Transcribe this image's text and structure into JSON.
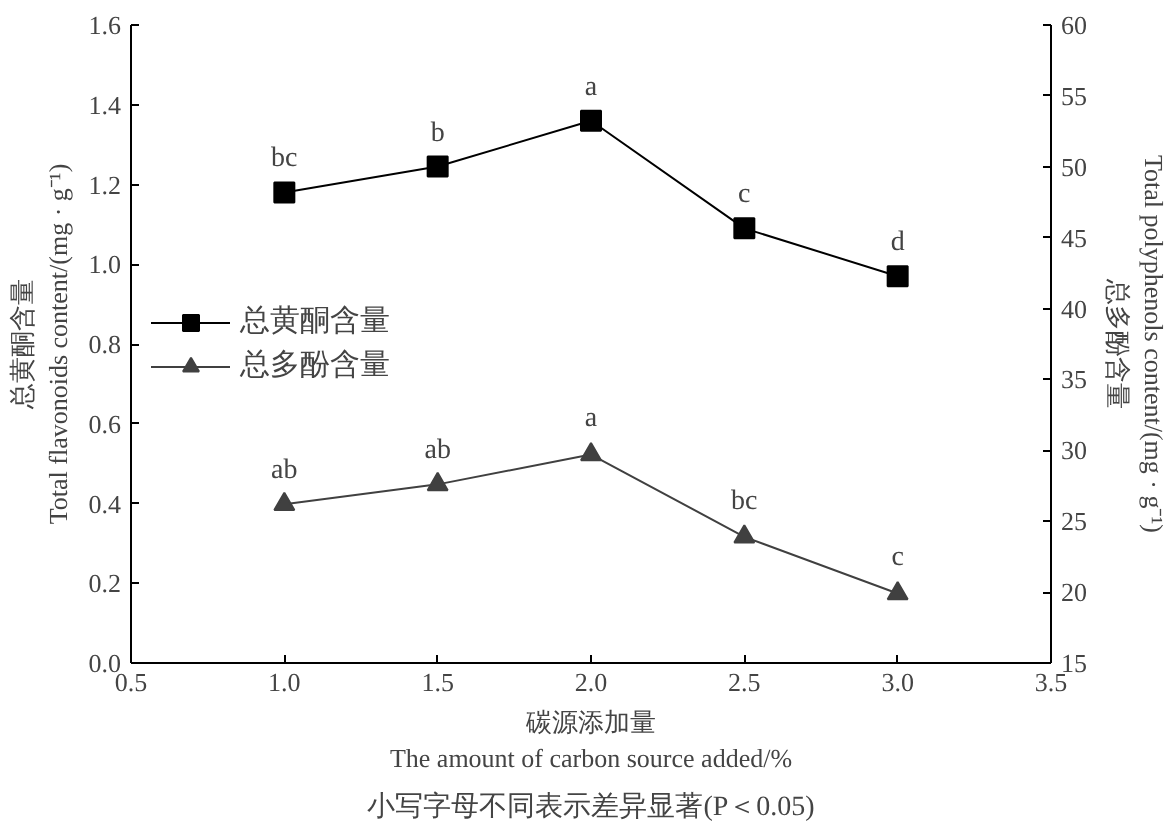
{
  "chart_data": {
    "type": "line",
    "xlabel": "碳源添加量\nThe amount of carbon source added/%",
    "ylabel": "总黄酮含量\nTotal flavonoids content/(mg · g⁻¹)",
    "y2label": "Total polyphenols content/(mg · g⁻¹)\n总多酚含量",
    "x": [
      1.0,
      1.5,
      2.0,
      2.5,
      3.0
    ],
    "series": [
      {
        "name": "总黄酮含量",
        "color": "#000000",
        "marker": "square",
        "values": [
          1.18,
          1.245,
          1.36,
          1.09,
          0.97
        ]
      },
      {
        "name": "总多酚含量",
        "color": "#404040",
        "marker": "triangle",
        "axis": "y2",
        "values": [
          26.2,
          27.6,
          29.7,
          23.9,
          19.9
        ]
      }
    ],
    "xlim": [
      0.5,
      3.5
    ],
    "xticks": [
      {
        "value": 0.5,
        "label": "0.5"
      },
      {
        "value": 1.0,
        "label": "1.0"
      },
      {
        "value": 1.5,
        "label": "1.5"
      },
      {
        "value": 2.0,
        "label": "2.0"
      },
      {
        "value": 2.5,
        "label": "2.5"
      },
      {
        "value": 3.0,
        "label": "3.0"
      },
      {
        "value": 3.5,
        "label": "3.5"
      }
    ],
    "ylim": [
      0.0,
      1.6
    ],
    "yticks": [
      {
        "value": 0,
        "label": "0.0"
      },
      {
        "value": 0.2,
        "label": "0.2"
      },
      {
        "value": 0.4,
        "label": "0.4"
      },
      {
        "value": 0.6,
        "label": "0.6"
      },
      {
        "value": 0.8,
        "label": "0.8"
      },
      {
        "value": 1.0,
        "label": "1.0"
      },
      {
        "value": 1.2,
        "label": "1.2"
      },
      {
        "value": 1.4,
        "label": "1.4"
      },
      {
        "value": 1.6,
        "label": "1.6"
      }
    ],
    "y2lim": [
      15,
      60
    ],
    "y2ticks": [
      15,
      20,
      25,
      30,
      35,
      40,
      45,
      50,
      55,
      60
    ],
    "grid": false,
    "legend": "left",
    "line_style": "solid",
    "annotations": [
      {
        "text": "bc",
        "x": 1.0,
        "y": 1.18
      },
      {
        "text": "b",
        "x": 1.5,
        "y": 1.245
      },
      {
        "text": "a",
        "x": 2.0,
        "y": 1.36
      },
      {
        "text": "c",
        "x": 2.5,
        "y": 1.09
      },
      {
        "text": "d",
        "x": 3.0,
        "y": 0.97
      },
      {
        "text": "ab",
        "x": 1.0,
        "y": 0.4
      },
      {
        "text": "ab",
        "x": 1.5,
        "y": 0.45
      },
      {
        "text": "a",
        "x": 2.0,
        "y": 0.53
      },
      {
        "text": "bc",
        "x": 2.5,
        "y": 0.32
      },
      {
        "text": "c",
        "x": 3.0,
        "y": 0.18
      },
      "小写字母不同表示差异显著(P＜0.05)"
    ]
  }
}
